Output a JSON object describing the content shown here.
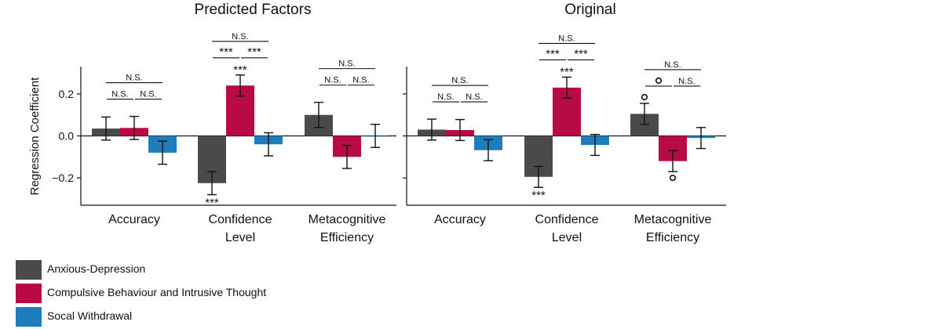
{
  "colors": {
    "anxious_depression": "#4a4a4a",
    "compulsive": "#b80a45",
    "social_withdrawal": "#1f7dbc"
  },
  "legend": [
    {
      "label": "Anxious-Depression",
      "color": "#4a4a4a"
    },
    {
      "label": "Compulsive Behaviour and Intrusive Thought",
      "color": "#b80a45"
    },
    {
      "label": "Socal Withdrawal",
      "color": "#1f7dbc"
    }
  ],
  "chart_data": [
    {
      "type": "bar",
      "title": "Predicted Factors",
      "ylabel": "Regression Coefficient",
      "xlabel": "",
      "ylim": [
        -0.33,
        0.33
      ],
      "yticks": [
        "0.2",
        "0.0",
        "−0.2"
      ],
      "categories": [
        [
          "Accuracy"
        ],
        [
          "Confidence",
          "Level"
        ],
        [
          "Metacognitive",
          "Efficiency"
        ]
      ],
      "series": [
        {
          "name": "Anxious-Depression",
          "values": [
            0.035,
            -0.225,
            0.1
          ],
          "err": [
            0.055,
            0.055,
            0.06
          ]
        },
        {
          "name": "Compulsive Behaviour and Intrusive Thought",
          "values": [
            0.038,
            0.24,
            -0.1
          ],
          "err": [
            0.055,
            0.05,
            0.055
          ]
        },
        {
          "name": "Socal Withdrawal",
          "values": [
            -0.08,
            -0.04,
            0.0
          ],
          "err": [
            0.055,
            0.055,
            0.055
          ]
        }
      ],
      "bar_annotations": [
        {
          "category": 1,
          "series": 0,
          "text": "***",
          "side": "below"
        },
        {
          "category": 1,
          "series": 1,
          "text": "***",
          "side": "above"
        }
      ],
      "comparisons": [
        {
          "category": 0,
          "pairs": [
            [
              "N.S.",
              "N.S."
            ],
            "N.S."
          ]
        },
        {
          "category": 1,
          "pairs": [
            [
              "***",
              "***"
            ],
            "N.S."
          ]
        },
        {
          "category": 2,
          "pairs": [
            [
              "N.S.",
              "N.S."
            ],
            "N.S."
          ]
        }
      ]
    },
    {
      "type": "bar",
      "title": "Original",
      "ylabel": "",
      "xlabel": "",
      "ylim": [
        -0.33,
        0.33
      ],
      "categories": [
        [
          "Accuracy"
        ],
        [
          "Confidence",
          "Level"
        ],
        [
          "Metacognitive",
          "Efficiency"
        ]
      ],
      "series": [
        {
          "name": "Anxious-Depression",
          "values": [
            0.03,
            -0.195,
            0.105
          ],
          "err": [
            0.05,
            0.05,
            0.05
          ]
        },
        {
          "name": "Compulsive Behaviour and Intrusive Thought",
          "values": [
            0.028,
            0.23,
            -0.12
          ],
          "err": [
            0.05,
            0.05,
            0.05
          ]
        },
        {
          "name": "Socal Withdrawal",
          "values": [
            -0.068,
            -0.043,
            -0.01
          ],
          "err": [
            0.05,
            0.05,
            0.05
          ]
        }
      ],
      "bar_annotations": [
        {
          "category": 1,
          "series": 0,
          "text": "***",
          "side": "below"
        },
        {
          "category": 1,
          "series": 1,
          "text": "***",
          "side": "above"
        },
        {
          "category": 2,
          "series": 0,
          "text": "°",
          "side": "above"
        },
        {
          "category": 2,
          "series": 1,
          "text": "°",
          "side": "below"
        }
      ],
      "comparisons": [
        {
          "category": 0,
          "pairs": [
            [
              "N.S.",
              "N.S."
            ],
            "N.S."
          ]
        },
        {
          "category": 1,
          "pairs": [
            [
              "***",
              "***"
            ],
            "N.S."
          ]
        },
        {
          "category": 2,
          "pairs": [
            [
              "°",
              "N.S."
            ],
            "N.S."
          ]
        }
      ]
    }
  ]
}
